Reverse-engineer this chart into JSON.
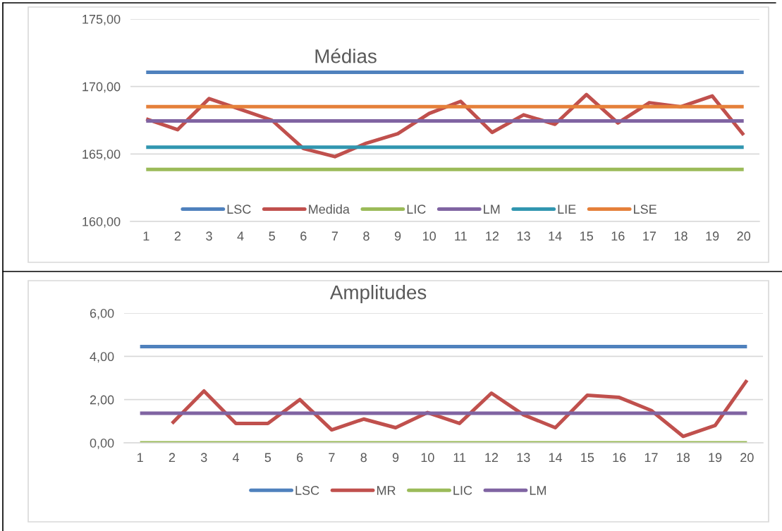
{
  "chart_data": [
    {
      "type": "line",
      "title": "Médias",
      "categories": [
        "1",
        "2",
        "3",
        "4",
        "5",
        "6",
        "7",
        "8",
        "9",
        "10",
        "11",
        "12",
        "13",
        "14",
        "15",
        "16",
        "17",
        "18",
        "19",
        "20"
      ],
      "series": [
        {
          "name": "LSC",
          "color": "#4f81bd",
          "values": [
            171.05,
            171.05,
            171.05,
            171.05,
            171.05,
            171.05,
            171.05,
            171.05,
            171.05,
            171.05,
            171.05,
            171.05,
            171.05,
            171.05,
            171.05,
            171.05,
            171.05,
            171.05,
            171.05,
            171.05
          ]
        },
        {
          "name": "Medida",
          "color": "#c0504d",
          "values": [
            167.6,
            166.8,
            169.1,
            168.3,
            167.5,
            165.4,
            164.8,
            165.8,
            166.5,
            168.0,
            168.9,
            166.6,
            167.9,
            167.2,
            169.4,
            167.3,
            168.8,
            168.5,
            169.3,
            166.4
          ]
        },
        {
          "name": "LIC",
          "color": "#9bbb59",
          "values": [
            163.85,
            163.85,
            163.85,
            163.85,
            163.85,
            163.85,
            163.85,
            163.85,
            163.85,
            163.85,
            163.85,
            163.85,
            163.85,
            163.85,
            163.85,
            163.85,
            163.85,
            163.85,
            163.85,
            163.85
          ]
        },
        {
          "name": "LM",
          "color": "#8064a2",
          "values": [
            167.45,
            167.45,
            167.45,
            167.45,
            167.45,
            167.45,
            167.45,
            167.45,
            167.45,
            167.45,
            167.45,
            167.45,
            167.45,
            167.45,
            167.45,
            167.45,
            167.45,
            167.45,
            167.45,
            167.45
          ]
        },
        {
          "name": "LIE",
          "color": "#3196b0",
          "values": [
            165.5,
            165.5,
            165.5,
            165.5,
            165.5,
            165.5,
            165.5,
            165.5,
            165.5,
            165.5,
            165.5,
            165.5,
            165.5,
            165.5,
            165.5,
            165.5,
            165.5,
            165.5,
            165.5,
            165.5
          ]
        },
        {
          "name": "LSE",
          "color": "#e5803a",
          "values": [
            168.5,
            168.5,
            168.5,
            168.5,
            168.5,
            168.5,
            168.5,
            168.5,
            168.5,
            168.5,
            168.5,
            168.5,
            168.5,
            168.5,
            168.5,
            168.5,
            168.5,
            168.5,
            168.5,
            168.5
          ]
        }
      ],
      "ylim": [
        160,
        175
      ],
      "yticks": [
        {
          "value": 160,
          "label": "160,00"
        },
        {
          "value": 165,
          "label": "165,00"
        },
        {
          "value": 170,
          "label": "170,00"
        },
        {
          "value": 175,
          "label": "175,00"
        }
      ],
      "grid": "y",
      "legend": "bottom"
    },
    {
      "type": "line",
      "title": "Amplitudes",
      "categories": [
        "1",
        "2",
        "3",
        "4",
        "5",
        "6",
        "7",
        "8",
        "9",
        "10",
        "11",
        "12",
        "13",
        "14",
        "15",
        "16",
        "17",
        "18",
        "19",
        "20"
      ],
      "series": [
        {
          "name": "LSC",
          "color": "#4f81bd",
          "values": [
            4.45,
            4.45,
            4.45,
            4.45,
            4.45,
            4.45,
            4.45,
            4.45,
            4.45,
            4.45,
            4.45,
            4.45,
            4.45,
            4.45,
            4.45,
            4.45,
            4.45,
            4.45,
            4.45,
            4.45
          ]
        },
        {
          "name": "MR",
          "color": "#c0504d",
          "values": [
            null,
            0.9,
            2.4,
            0.9,
            0.9,
            2.0,
            0.6,
            1.1,
            0.7,
            1.4,
            0.9,
            2.3,
            1.3,
            0.7,
            2.2,
            2.1,
            1.5,
            0.3,
            0.8,
            2.9
          ]
        },
        {
          "name": "LIC",
          "color": "#9bbb59",
          "values": [
            0,
            0,
            0,
            0,
            0,
            0,
            0,
            0,
            0,
            0,
            0,
            0,
            0,
            0,
            0,
            0,
            0,
            0,
            0,
            0
          ]
        },
        {
          "name": "LM",
          "color": "#8064a2",
          "values": [
            1.37,
            1.37,
            1.37,
            1.37,
            1.37,
            1.37,
            1.37,
            1.37,
            1.37,
            1.37,
            1.37,
            1.37,
            1.37,
            1.37,
            1.37,
            1.37,
            1.37,
            1.37,
            1.37,
            1.37
          ]
        }
      ],
      "ylim": [
        0,
        6
      ],
      "yticks": [
        {
          "value": 0,
          "label": "0,00"
        },
        {
          "value": 2,
          "label": "2,00"
        },
        {
          "value": 4,
          "label": "4,00"
        },
        {
          "value": 6,
          "label": "6,00"
        }
      ],
      "grid": "y",
      "legend": "bottom"
    }
  ]
}
